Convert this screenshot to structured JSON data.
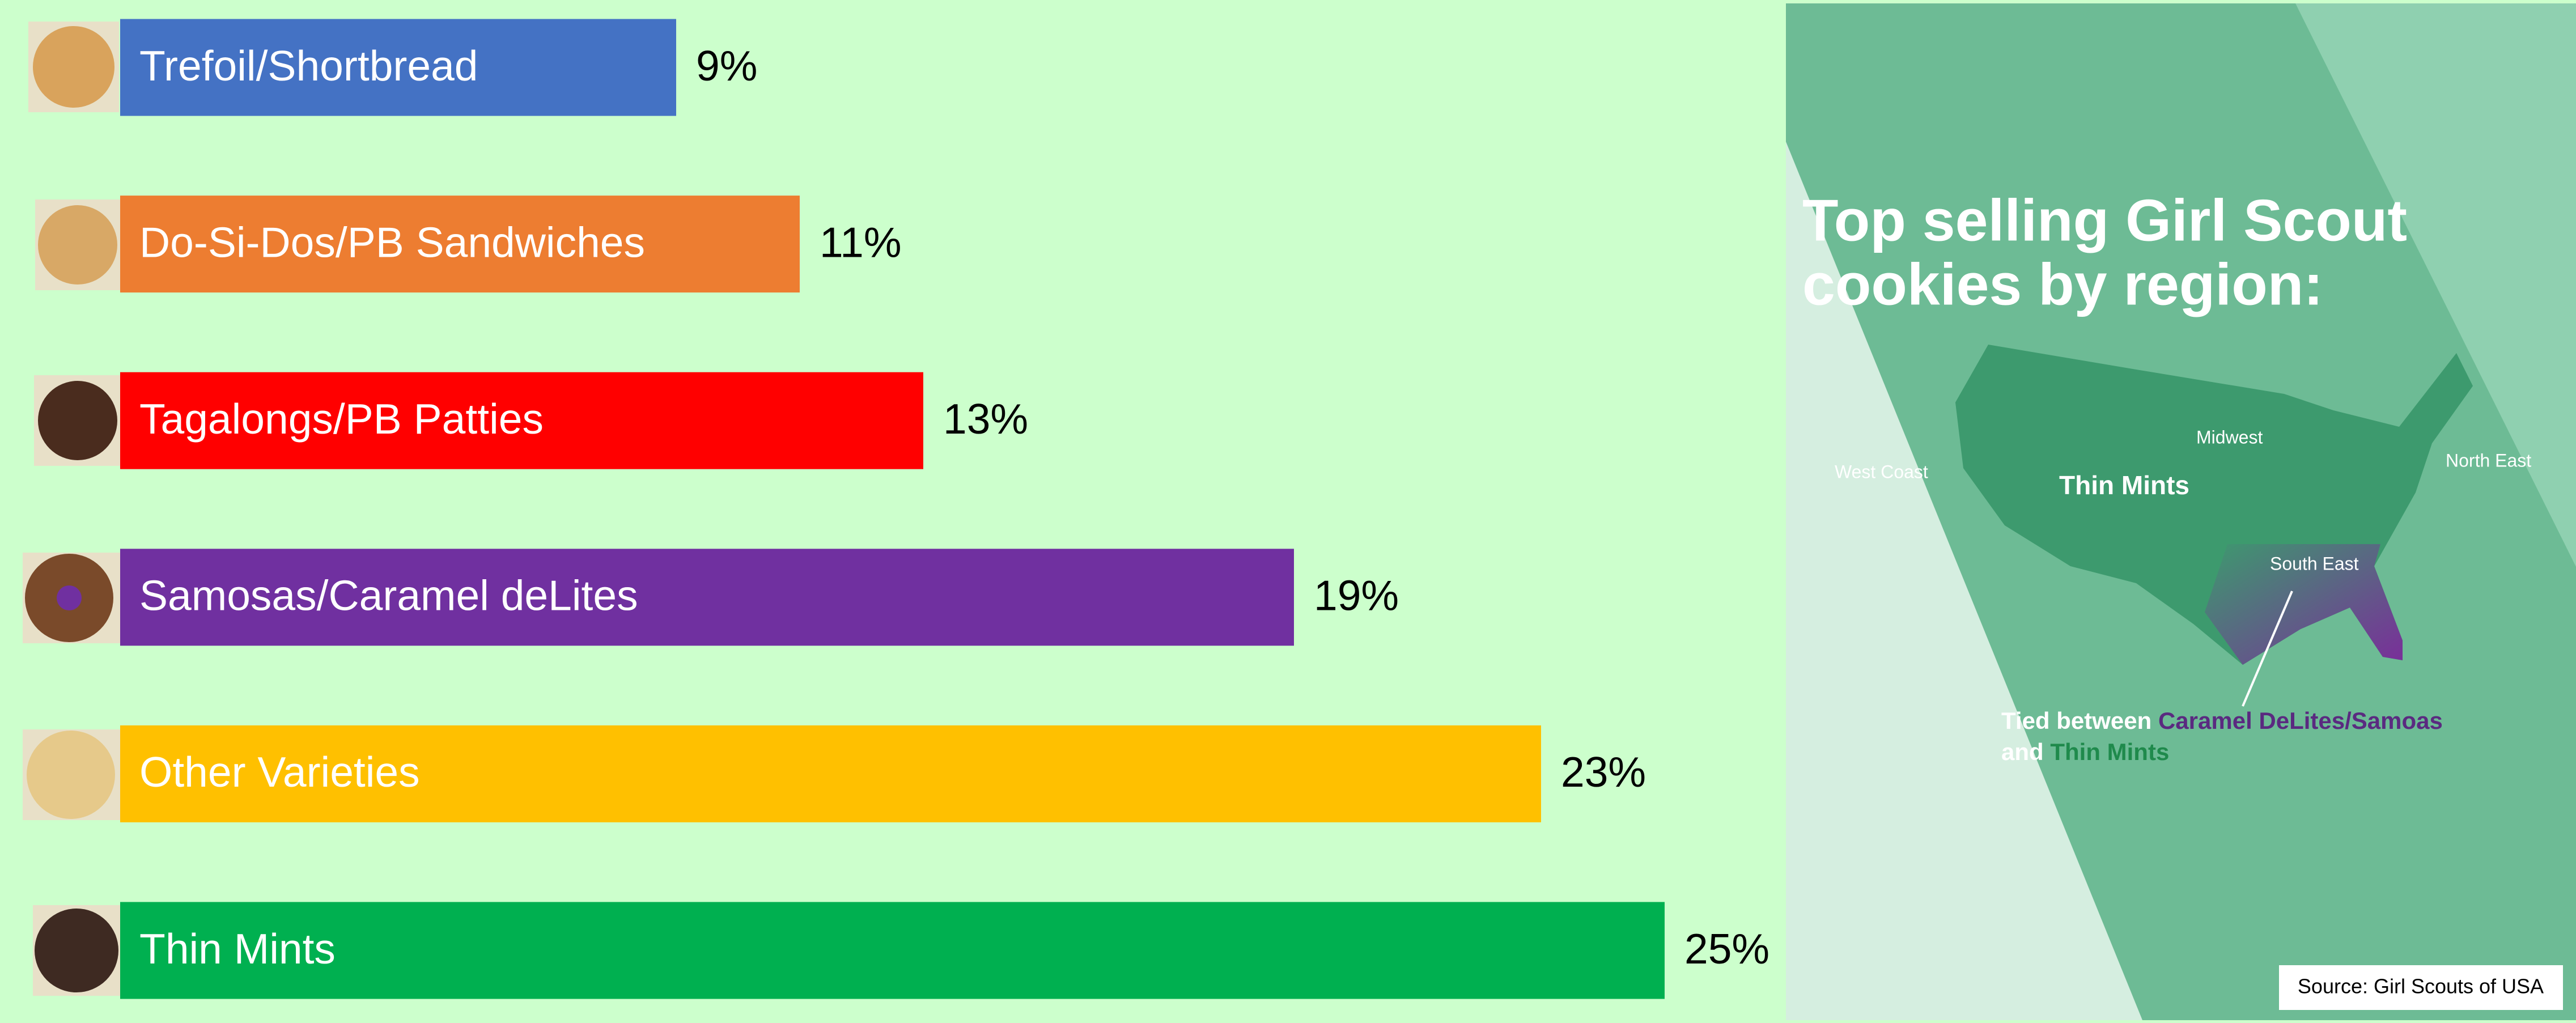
{
  "chart_data": {
    "type": "bar",
    "orientation": "horizontal",
    "categories": [
      "Trefoil/Shortbread",
      "Do-Si-Dos/PB Sandwiches",
      "Tagalongs/PB Patties",
      "Samosas/Caramel deLites",
      "Other Varieties",
      "Thin Mints"
    ],
    "values": [
      9,
      11,
      13,
      19,
      23,
      25
    ],
    "value_labels": [
      "9%",
      "11%",
      "13%",
      "19%",
      "23%",
      "25%"
    ],
    "colors": [
      "#4472c4",
      "#ed7d31",
      "#ff0000",
      "#7030a0",
      "#ffc000",
      "#00b050"
    ]
  },
  "panel": {
    "title": [
      "Top selling Girl Scout",
      "cookies by region:"
    ],
    "regions": [
      "West Coast",
      "Midwest",
      "North East",
      "South East"
    ],
    "map_label": "Thin Mints",
    "note": {
      "line1": "Tied between",
      "highlight1": "Caramel DeLites/Samoas",
      "line2": "and",
      "highlight2": "Thin Mints"
    },
    "source": "Source: Girl Scouts of USA"
  }
}
